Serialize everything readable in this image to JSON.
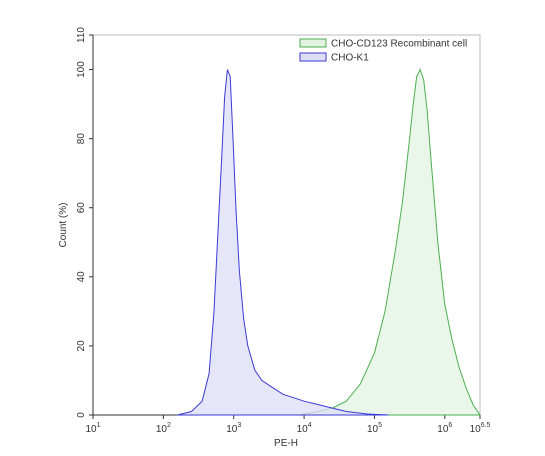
{
  "chart_data": {
    "type": "area",
    "x_label": "PE-H",
    "y_label": "Count  (%)",
    "log_x": true,
    "xlim": [
      10,
      3162278
    ],
    "xticks": [
      {
        "value": 10,
        "label": "10",
        "power": "1"
      },
      {
        "value": 100,
        "label": "10",
        "power": "2"
      },
      {
        "value": 1000,
        "label": "10",
        "power": "3"
      },
      {
        "value": 10000,
        "label": "10",
        "power": "4"
      },
      {
        "value": 100000,
        "label": "10",
        "power": "5"
      },
      {
        "value": 1000000,
        "label": "10",
        "power": "6"
      },
      {
        "value": 3162278,
        "label": "10",
        "power": "6.5"
      }
    ],
    "ylim": [
      0,
      110
    ],
    "yticks": [
      0,
      20,
      40,
      60,
      80,
      100,
      110
    ],
    "legend": "top-right",
    "series": [
      {
        "name": "CHO-CD123 Recombinant cell",
        "color": "#4caf50",
        "fill": "#e2f3e2",
        "x": [
          7943,
          15849,
          25119,
          39811,
          63096,
          100000,
          141254,
          199526,
          251189,
          316228,
          354813,
          398107,
          446684,
          501187,
          562341,
          630957,
          794328,
          1000000,
          1258925,
          1584893,
          1995262,
          2511886,
          3162278
        ],
        "values": [
          0,
          1,
          2,
          4,
          9,
          18,
          30,
          48,
          62,
          80,
          90,
          98,
          100,
          97,
          88,
          75,
          50,
          32,
          22,
          14,
          8,
          3,
          0
        ]
      },
      {
        "name": "CHO-K1",
        "color": "#3a3ad6",
        "fill": "#dedef8",
        "x": [
          158,
          251,
          355,
          447,
          525,
          603,
          676,
          741,
          813,
          891,
          977,
          1072,
          1202,
          1380,
          1585,
          1995,
          2512,
          3548,
          5012,
          7079,
          10000,
          15849,
          25119,
          39811,
          79433,
          158489
        ],
        "values": [
          0,
          1,
          4,
          12,
          30,
          55,
          75,
          92,
          100,
          98,
          80,
          60,
          42,
          28,
          20,
          13,
          10,
          8,
          6,
          5,
          4,
          3,
          2,
          1,
          0.3,
          0
        ]
      }
    ]
  }
}
